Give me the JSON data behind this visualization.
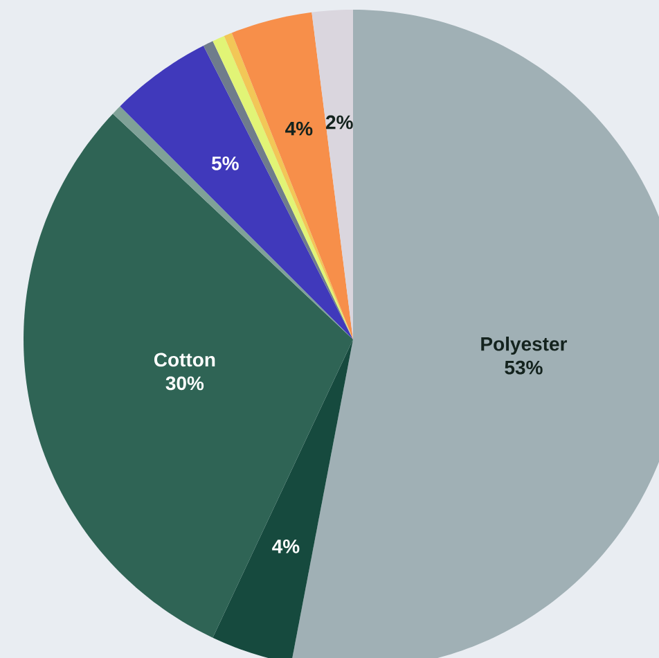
{
  "chart_data": {
    "type": "pie",
    "categories": [
      "Polyester",
      null,
      "Cotton",
      null,
      null,
      null,
      null,
      null,
      null,
      null
    ],
    "values": [
      53,
      4,
      30,
      0.5,
      5,
      0.5,
      0.6,
      0.4,
      4,
      2
    ],
    "value_labels": [
      "53%",
      "4%",
      "30%",
      null,
      "5%",
      null,
      null,
      null,
      "4%",
      "2%"
    ],
    "colors": [
      "#a0b0b5",
      "#164a3e",
      "#2f6455",
      "#7fa197",
      "#4039bb",
      "#6f7c8c",
      "#e1f476",
      "#f2c757",
      "#f78f4a",
      "#dad6de"
    ]
  }
}
